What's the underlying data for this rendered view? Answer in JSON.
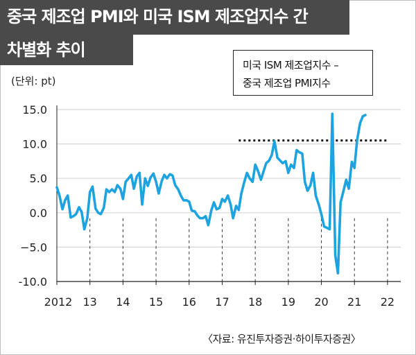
{
  "title": {
    "line1": "중국 제조업 PMI와 미국 ISM 제조업지수 간",
    "line2": "차별화 추이"
  },
  "unit_label": "(단위: pt)",
  "legend": {
    "line1": "미국 ISM 제조업지수 –",
    "line2": "중국 제조업 PMI지수"
  },
  "source": "〈자료: 유진투자증권·하이투자증권〉",
  "chart_data": {
    "type": "line",
    "title": "중국 제조업 PMI와 미국 ISM 제조업지수 간 차별화 추이",
    "xlabel": "",
    "ylabel": "(단위: pt)",
    "ylim": [
      -10,
      15
    ],
    "y_ticks": [
      -10,
      -5,
      0,
      5,
      10,
      15
    ],
    "y_tick_labels": [
      "-10.0",
      "−5.0",
      "0.0",
      "5.0",
      "10.0",
      "15.0"
    ],
    "x_ticks": [
      2012,
      2013,
      2014,
      2015,
      2016,
      2017,
      2018,
      2019,
      2020,
      2021,
      2022
    ],
    "x_tick_labels": [
      "2012",
      "13",
      "14",
      "15",
      "16",
      "17",
      "18",
      "19",
      "20",
      "21",
      "22"
    ],
    "xlim": [
      2012,
      2022.4
    ],
    "grid": "horizontal",
    "line_color": "#1ca3e0",
    "reference_line": {
      "value": 10.5,
      "x_start": 2017.5,
      "x_end": 2022,
      "style": "dotted"
    },
    "series": [
      {
        "x": [
          2012.0,
          2012.08,
          2012.17,
          2012.25,
          2012.33,
          2012.42,
          2012.5,
          2012.58,
          2012.67,
          2012.75,
          2012.83,
          2012.92,
          2013.0,
          2013.08,
          2013.17,
          2013.25,
          2013.33,
          2013.42,
          2013.5,
          2013.58,
          2013.67,
          2013.75,
          2013.83,
          2013.92,
          2014.0,
          2014.08,
          2014.17,
          2014.25,
          2014.33,
          2014.42,
          2014.5,
          2014.58,
          2014.67,
          2014.75,
          2014.83,
          2014.92,
          2015.0,
          2015.08,
          2015.17,
          2015.25,
          2015.33,
          2015.42,
          2015.5,
          2015.58,
          2015.67,
          2015.75,
          2015.83,
          2015.92,
          2016.0,
          2016.08,
          2016.17,
          2016.25,
          2016.33,
          2016.42,
          2016.5,
          2016.58,
          2016.67,
          2016.75,
          2016.83,
          2016.92,
          2017.0,
          2017.08,
          2017.17,
          2017.25,
          2017.33,
          2017.42,
          2017.5,
          2017.58,
          2017.67,
          2017.75,
          2017.83,
          2017.92,
          2018.0,
          2018.08,
          2018.17,
          2018.25,
          2018.33,
          2018.42,
          2018.5,
          2018.58,
          2018.67,
          2018.75,
          2018.83,
          2018.92,
          2019.0,
          2019.08,
          2019.17,
          2019.25,
          2019.33,
          2019.42,
          2019.5,
          2019.58,
          2019.67,
          2019.75,
          2019.83,
          2019.92,
          2020.0,
          2020.08,
          2020.17,
          2020.25,
          2020.33,
          2020.42,
          2020.5,
          2020.58,
          2020.67,
          2020.75,
          2020.83,
          2020.92,
          2021.0,
          2021.08,
          2021.17,
          2021.25,
          2021.33
        ],
        "values": [
          3.7,
          2.5,
          0.5,
          1.8,
          2.5,
          -0.7,
          -0.5,
          -0.2,
          0.8,
          0.1,
          -2.4,
          -0.8,
          3.0,
          3.8,
          0.6,
          0.0,
          -0.2,
          0.7,
          3.4,
          3.0,
          3.4,
          3.0,
          4.0,
          3.5,
          2.0,
          4.5,
          5.0,
          5.5,
          3.5,
          5.3,
          5.8,
          1.2,
          5.0,
          3.9,
          5.1,
          5.7,
          4.5,
          2.8,
          4.6,
          5.5,
          5.0,
          5.6,
          5.4,
          4.0,
          3.4,
          2.5,
          1.8,
          1.8,
          1.6,
          0.3,
          0.2,
          -0.4,
          -0.8,
          -0.8,
          -0.5,
          -1.8,
          0.3,
          1.5,
          0.5,
          0.7,
          2.0,
          1.6,
          2.5,
          1.3,
          -0.8,
          1.0,
          0.4,
          2.8,
          4.5,
          5.8,
          5.0,
          4.5,
          7.0,
          6.1,
          4.8,
          6.0,
          7.2,
          7.6,
          8.4,
          10.4,
          8.0,
          7.6,
          7.2,
          7.5,
          5.8,
          7.0,
          6.5,
          9.1,
          8.8,
          8.6,
          4.5,
          3.2,
          4.0,
          5.8,
          2.5,
          1.2,
          -0.2,
          -2.0,
          -2.2,
          -2.4,
          14.4,
          -6.2,
          -8.8,
          1.5,
          3.2,
          4.8,
          3.5,
          7.4,
          6.5,
          10.5,
          13.0,
          14.0,
          14.2
        ]
      }
    ]
  }
}
